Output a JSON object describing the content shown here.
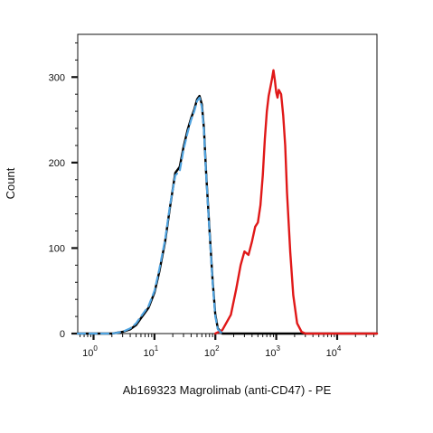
{
  "chart_data": {
    "type": "line",
    "title": "",
    "xlabel": "Ab169323 Magrolimab (anti-CD47) - PE",
    "ylabel": "Count",
    "x_scale": "log",
    "xlim": [
      0.55,
      45000
    ],
    "ylim": [
      0,
      350
    ],
    "x_tick_values": [
      1,
      10,
      100,
      1000,
      10000
    ],
    "x_tick_labels": [
      {
        "base": "10",
        "exp": "0"
      },
      {
        "base": "10",
        "exp": "1"
      },
      {
        "base": "10",
        "exp": "2"
      },
      {
        "base": "10",
        "exp": "3"
      },
      {
        "base": "10",
        "exp": "4"
      }
    ],
    "y_ticks": [
      0,
      100,
      200,
      300
    ],
    "grid": false,
    "legend": "none",
    "series": [
      {
        "color": "#4fa3e0",
        "dash": "8,5",
        "width": 2.2,
        "x": [
          0.55,
          2,
          3,
          4,
          5,
          6,
          8,
          10,
          12,
          15,
          18,
          22,
          26,
          30,
          35,
          40,
          45,
          50,
          55,
          60,
          65,
          70,
          80,
          90,
          100,
          110,
          130
        ],
        "y": [
          0,
          0,
          2,
          6,
          12,
          20,
          32,
          50,
          75,
          110,
          150,
          185,
          190,
          215,
          235,
          250,
          260,
          272,
          276,
          265,
          238,
          190,
          120,
          60,
          20,
          5,
          0
        ]
      },
      {
        "color": "#000000",
        "dash": "",
        "width": 2.4,
        "x": [
          0.55,
          2,
          3,
          4,
          5,
          6,
          8,
          10,
          12,
          15,
          18,
          22,
          26,
          30,
          35,
          40,
          45,
          50,
          55,
          60,
          65,
          70,
          80,
          90,
          100,
          110,
          130,
          45000
        ],
        "y": [
          0,
          0,
          2,
          5,
          10,
          18,
          30,
          48,
          72,
          108,
          148,
          188,
          195,
          218,
          238,
          252,
          262,
          274,
          278,
          268,
          240,
          192,
          122,
          62,
          22,
          6,
          0,
          0
        ]
      },
      {
        "color": "#e01818",
        "dash": "",
        "width": 2.4,
        "x": [
          100,
          130,
          180,
          220,
          260,
          300,
          350,
          400,
          450,
          500,
          550,
          600,
          650,
          700,
          750,
          800,
          850,
          900,
          950,
          1000,
          1050,
          1100,
          1200,
          1300,
          1400,
          1500,
          1700,
          1900,
          2200,
          2600,
          3000,
          45000
        ],
        "y": [
          0,
          4,
          22,
          52,
          80,
          96,
          92,
          108,
          125,
          130,
          150,
          185,
          228,
          260,
          278,
          288,
          298,
          308,
          296,
          282,
          276,
          285,
          280,
          255,
          220,
          165,
          95,
          45,
          12,
          2,
          0,
          0
        ]
      }
    ]
  }
}
